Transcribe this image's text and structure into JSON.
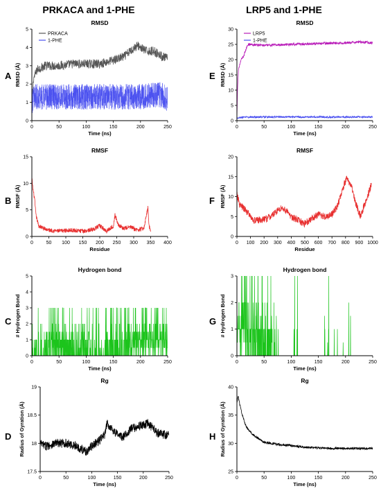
{
  "column_titles": [
    "PRKACA and 1-PHE",
    "LRP5 and 1-PHE"
  ],
  "chart_data": [
    {
      "panel": "A",
      "type": "line",
      "title": "RMSD",
      "xlabel": "Time (ns)",
      "ylabel": "RMSD (Å)",
      "xlim": [
        0,
        250
      ],
      "ylim": [
        0,
        5
      ],
      "xticks": [
        0,
        50,
        100,
        150,
        200,
        250
      ],
      "yticks": [
        0,
        1,
        2,
        3,
        4,
        5
      ],
      "legend": "top-left",
      "series": [
        {
          "name": "PRKACA",
          "color": "#555555",
          "style": "noisy",
          "x": [
            0,
            3,
            10,
            25,
            50,
            75,
            100,
            125,
            150,
            170,
            185,
            195,
            210,
            225,
            240,
            250
          ],
          "y": [
            0.4,
            2.3,
            2.8,
            3.0,
            3.0,
            3.1,
            3.1,
            3.1,
            3.3,
            3.5,
            3.9,
            4.1,
            3.8,
            3.8,
            3.5,
            3.4
          ],
          "noise": 0.25
        },
        {
          "name": "1-PHE",
          "color": "#4a50f0",
          "style": "band",
          "x": [
            0,
            5,
            25,
            50,
            100,
            150,
            200,
            220,
            240,
            250
          ],
          "y": [
            1.0,
            1.3,
            1.3,
            1.3,
            1.3,
            1.3,
            1.3,
            1.4,
            1.4,
            1.2
          ],
          "noise": 0.7
        }
      ]
    },
    {
      "panel": "B",
      "type": "line",
      "title": "RMSF",
      "xlabel": "Residue",
      "ylabel": "RMSF (Å)",
      "xlim": [
        0,
        400
      ],
      "ylim": [
        0,
        15
      ],
      "xticks": [
        0,
        50,
        100,
        150,
        200,
        250,
        300,
        350,
        400
      ],
      "yticks": [
        0,
        5,
        10,
        15
      ],
      "series": [
        {
          "name": "",
          "color": "#e83030",
          "style": "noisy",
          "x": [
            0,
            3,
            8,
            12,
            20,
            35,
            50,
            80,
            110,
            150,
            180,
            200,
            220,
            240,
            245,
            255,
            270,
            290,
            310,
            330,
            342,
            345,
            350
          ],
          "y": [
            11,
            9,
            7,
            4,
            2,
            1.5,
            1.2,
            1.0,
            1.2,
            1.0,
            1.3,
            2.0,
            1.0,
            2.0,
            4.0,
            2.2,
            1.5,
            1.8,
            1.2,
            1.5,
            5.5,
            2.0,
            1.2
          ],
          "noise": 0.4
        }
      ]
    },
    {
      "panel": "C",
      "type": "line",
      "title": "Hydrogen bond",
      "xlabel": "Time (ns)",
      "ylabel": "# Hydrogen Bond",
      "xlim": [
        0,
        250
      ],
      "ylim": [
        0,
        5
      ],
      "xticks": [
        0,
        50,
        100,
        150,
        200,
        250
      ],
      "yticks": [
        0,
        1,
        2,
        3,
        4,
        5
      ],
      "series": [
        {
          "name": "",
          "color": "#1cc41c",
          "style": "hbond",
          "x": [
            0,
            10,
            20,
            30,
            60,
            80,
            95,
            110,
            130,
            150,
            165,
            175,
            200,
            225,
            250
          ],
          "y": [
            0.6,
            0.6,
            0.3,
            1.0,
            1.0,
            0.3,
            1.0,
            0.3,
            0.3,
            0.7,
            0.3,
            1.0,
            1.2,
            1.3,
            1.3
          ],
          "max": 3
        }
      ]
    },
    {
      "panel": "D",
      "type": "line",
      "title": "Rg",
      "xlabel": "Time (ns)",
      "ylabel": "Radius of Gyration (Å)",
      "xlim": [
        0,
        250
      ],
      "ylim": [
        17.5,
        19.0
      ],
      "xticks": [
        0,
        50,
        100,
        150,
        200,
        250
      ],
      "yticks": [
        17.5,
        18.0,
        18.5,
        19.0
      ],
      "series": [
        {
          "name": "",
          "color": "#000000",
          "style": "noisy",
          "x": [
            0,
            10,
            30,
            50,
            70,
            90,
            100,
            115,
            125,
            130,
            145,
            160,
            175,
            190,
            210,
            225,
            240,
            250
          ],
          "y": [
            18.0,
            17.95,
            18.0,
            18.0,
            17.95,
            17.85,
            17.95,
            18.05,
            18.15,
            18.35,
            18.2,
            18.1,
            18.25,
            18.3,
            18.35,
            18.2,
            18.15,
            18.15
          ],
          "noise": 0.08
        }
      ]
    },
    {
      "panel": "E",
      "type": "line",
      "title": "RMSD",
      "xlabel": "Time (ns)",
      "ylabel": "RMSD (Å)",
      "xlim": [
        0,
        250
      ],
      "ylim": [
        0,
        30
      ],
      "xticks": [
        0,
        50,
        100,
        150,
        200,
        250
      ],
      "yticks": [
        0,
        5,
        10,
        15,
        20,
        25,
        30
      ],
      "legend": "top-left",
      "series": [
        {
          "name": "LRP5",
          "color": "#b81ab8",
          "style": "noisy",
          "x": [
            0,
            1,
            3,
            8,
            12,
            16,
            20,
            25,
            50,
            100,
            150,
            200,
            230,
            250
          ],
          "y": [
            0.5,
            10,
            17,
            20,
            21,
            23,
            25,
            25,
            24.7,
            25.0,
            25.3,
            25.5,
            25.8,
            25.5
          ],
          "noise": 0.4
        },
        {
          "name": "1-PHE",
          "color": "#4a50f0",
          "style": "noisy",
          "x": [
            0,
            25,
            50,
            100,
            150,
            200,
            250
          ],
          "y": [
            1.0,
            1.2,
            1.2,
            1.2,
            1.2,
            1.2,
            1.2
          ],
          "noise": 0.3
        }
      ]
    },
    {
      "panel": "F",
      "type": "line",
      "title": "RMSF",
      "xlabel": "Residue",
      "ylabel": "RMSF (Å)",
      "xlim": [
        0,
        1000
      ],
      "ylim": [
        0,
        20
      ],
      "xticks": [
        0,
        100,
        200,
        300,
        400,
        500,
        600,
        700,
        800,
        900,
        1000
      ],
      "yticks": [
        0,
        5,
        10,
        15,
        20
      ],
      "series": [
        {
          "name": "",
          "color": "#e83030",
          "style": "noisy",
          "x": [
            0,
            20,
            50,
            80,
            120,
            200,
            250,
            300,
            330,
            360,
            400,
            450,
            500,
            550,
            600,
            650,
            700,
            730,
            760,
            790,
            810,
            830,
            850,
            870,
            890,
            910,
            940,
            970,
            990
          ],
          "y": [
            10.5,
            8,
            7,
            6,
            4,
            4.2,
            5,
            6.5,
            7.2,
            6.5,
            5,
            4,
            3.2,
            4.5,
            5.5,
            5,
            5.5,
            7,
            9.5,
            13,
            15,
            13,
            12,
            9,
            7,
            5,
            8,
            11,
            13
          ],
          "noise": 0.9
        }
      ]
    },
    {
      "panel": "G",
      "type": "line",
      "title": "Hydrogen bond",
      "xlabel": "Time (ns)",
      "ylabel": "# Hydrogen Bond",
      "xlim": [
        0,
        250
      ],
      "ylim": [
        0,
        3
      ],
      "xticks": [
        0,
        50,
        100,
        150,
        200,
        250
      ],
      "yticks": [
        0,
        1,
        2,
        3
      ],
      "series": [
        {
          "name": "",
          "color": "#1cc41c",
          "style": "hbond",
          "x": [
            0,
            5,
            20,
            40,
            60,
            75,
            80,
            100,
            105,
            110,
            115,
            160,
            163,
            175,
            180,
            185,
            200,
            210,
            215,
            250
          ],
          "y": [
            1.6,
            1.4,
            1.1,
            0.8,
            0.5,
            0.3,
            0.0,
            0.0,
            0.25,
            0.25,
            0.0,
            0.0,
            0.2,
            0.0,
            0.35,
            0.2,
            0.0,
            0.1,
            0.0,
            0.0
          ],
          "max": 3
        }
      ]
    },
    {
      "panel": "H",
      "type": "line",
      "title": "Rg",
      "xlabel": "Time (ns)",
      "ylabel": "Radius of Gyration (Å)",
      "xlim": [
        0,
        250
      ],
      "ylim": [
        25,
        40
      ],
      "xticks": [
        0,
        50,
        100,
        150,
        200,
        250
      ],
      "yticks": [
        25,
        30,
        35,
        40
      ],
      "series": [
        {
          "name": "",
          "color": "#000000",
          "style": "noisy",
          "x": [
            0,
            2,
            5,
            10,
            15,
            20,
            30,
            40,
            50,
            75,
            100,
            125,
            150,
            175,
            200,
            225,
            250
          ],
          "y": [
            37,
            38.5,
            37,
            35,
            33.5,
            32.5,
            31.5,
            30.8,
            30.2,
            29.8,
            29.6,
            29.3,
            29.2,
            29.1,
            29.1,
            29.1,
            29.1
          ],
          "noise": 0.2
        }
      ]
    }
  ]
}
